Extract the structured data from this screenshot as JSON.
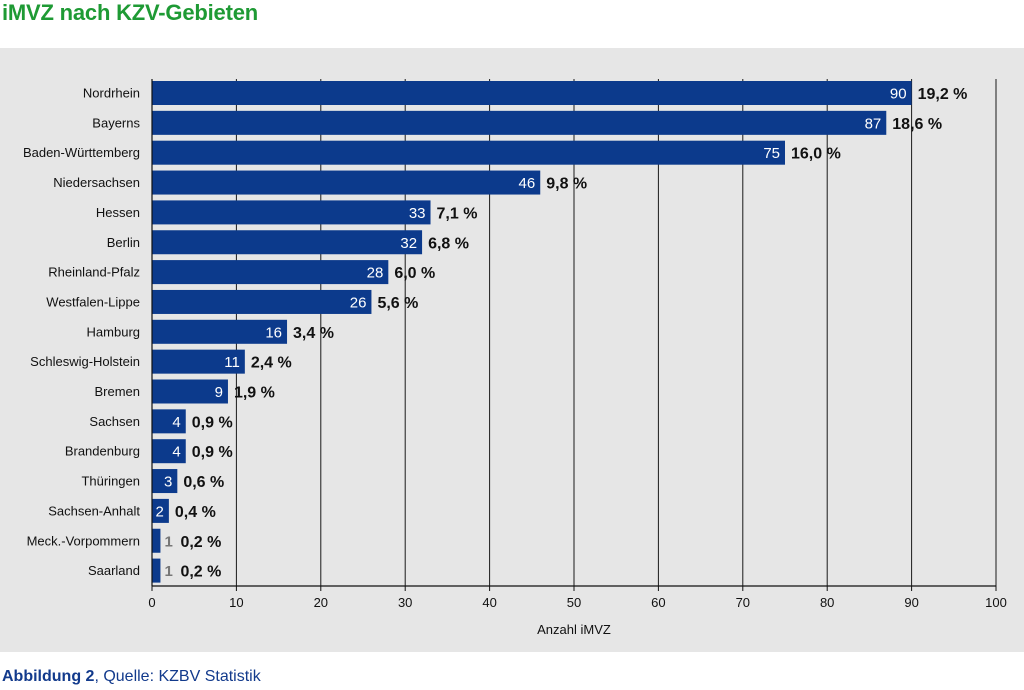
{
  "title": "iMVZ nach KZV-Gebieten",
  "caption": {
    "bold": "Abbildung 2",
    "rest": ", Quelle: KZBV Statistik"
  },
  "colors": {
    "title": "#1e9a34",
    "bar": "#0c3a8c",
    "caption": "#123a8c",
    "panel": "#e6e6e6",
    "grid": "#1a1a1a"
  },
  "chart_data": {
    "type": "bar",
    "orientation": "horizontal",
    "categories": [
      "Nordrhein",
      "Bayerns",
      "Baden-Württemberg",
      "Niedersachsen",
      "Hessen",
      "Berlin",
      "Rheinland-Pfalz",
      "Westfalen-Lippe",
      "Hamburg",
      "Schleswig-Holstein",
      "Bremen",
      "Sachsen",
      "Brandenburg",
      "Thüringen",
      "Sachsen-Anhalt",
      "Meck.-Vorpommern",
      "Saarland"
    ],
    "values": [
      90,
      87,
      75,
      46,
      33,
      32,
      28,
      26,
      16,
      11,
      9,
      4,
      4,
      3,
      2,
      1,
      1
    ],
    "percent_labels": [
      "19,2 %",
      "18,6 %",
      "16,0 %",
      "9,8 %",
      "7,1 %",
      "6,8 %",
      "6,0 %",
      "5,6 %",
      "3,4 %",
      "2,4 %",
      "1,9 %",
      "0,9 %",
      "0,9 %",
      "0,6 %",
      "0,4 %",
      "0,2 %",
      "0,2 %"
    ],
    "xlabel": "Anzahl iMVZ",
    "xlim": [
      0,
      100
    ],
    "xticks": [
      0,
      10,
      20,
      30,
      40,
      50,
      60,
      70,
      80,
      90,
      100
    ],
    "grid": "vertical"
  }
}
